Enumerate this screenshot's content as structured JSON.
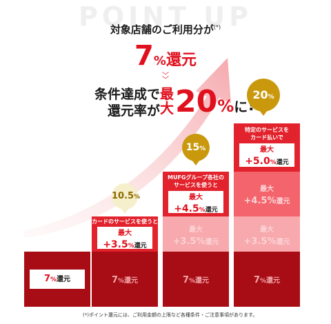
{
  "background_title": "POINT UP",
  "subtitle": "対象店舗のご利用分が",
  "subtitle_note": "(*)",
  "base_rate": {
    "number": "7",
    "pct": "%",
    "text": "還元"
  },
  "condition_text": [
    "条件達成で",
    "還元率が"
  ],
  "max_rate": {
    "kanji": "最大",
    "number": "20",
    "pct": "%",
    "suffix": "に",
    "exclaim": "!"
  },
  "columns": [
    {
      "bubble": null,
      "base": {
        "number": "7",
        "pct": "%",
        "text": "還元"
      }
    },
    {
      "bubble": {
        "number": "10.5",
        "pct": "%"
      },
      "tier1": {
        "desc": "カードのサービスを使うと",
        "max": "最大",
        "value": "+3.5",
        "pct": "%",
        "text": "還元"
      },
      "base": {
        "number": "7",
        "pct": "%",
        "text": "還元"
      }
    },
    {
      "bubble": {
        "number": "15",
        "pct": "%"
      },
      "tier2": {
        "desc": [
          "MUFGグループ各社の",
          "サービスを使うと"
        ],
        "max": "最大",
        "value": "+4.5",
        "pct": "%",
        "text": "還元"
      },
      "tier1": {
        "max": "最大",
        "value": "+3.5",
        "pct": "%",
        "text": "還元"
      },
      "base": {
        "number": "7",
        "pct": "%",
        "text": "還元"
      }
    },
    {
      "bubble": {
        "number": "20",
        "pct": "%"
      },
      "tier3": {
        "desc": [
          "特定のサービスを",
          "カード払いで"
        ],
        "max": "最大",
        "value": "+5.0",
        "pct": "%",
        "text": "還元"
      },
      "tier2": {
        "max": "最大",
        "value": "+4.5",
        "pct": "%",
        "text": "還元"
      },
      "tier1": {
        "max": "最大",
        "value": "+3.5",
        "pct": "%",
        "text": "還元"
      },
      "base": {
        "number": "7",
        "pct": "%",
        "text": "還元"
      }
    }
  ],
  "footnote": "(*)ポイント還元には、ご利用金額の上限など各種条件・ご注意事項があります。",
  "colors": {
    "red": "#e0101e",
    "dark": "#a80d15",
    "gold": "#c9980c"
  }
}
